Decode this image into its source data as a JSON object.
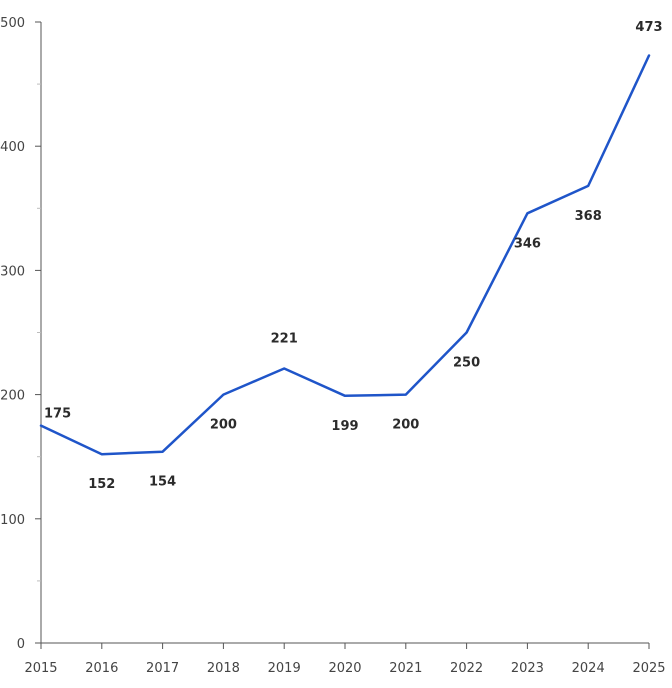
{
  "chart_data": {
    "type": "line",
    "title": "",
    "xlabel": "",
    "ylabel": "",
    "x": [
      "2015",
      "2016",
      "2017",
      "2018",
      "2019",
      "2020",
      "2021",
      "2022",
      "2023",
      "2024",
      "2025"
    ],
    "series": [
      {
        "values": [
          175,
          152,
          154,
          200,
          221,
          199,
          200,
          250,
          346,
          368,
          473
        ],
        "color": "#1f55c9"
      }
    ],
    "data_labels": [
      "175",
      "152",
      "154",
      "200",
      "221",
      "199",
      "200",
      "250",
      "346",
      "368",
      "473"
    ],
    "label_positions": [
      "above",
      "below",
      "below",
      "below",
      "above",
      "below",
      "below",
      "below",
      "below",
      "below",
      "above"
    ],
    "ylim": [
      0,
      500
    ],
    "yticks": [
      0,
      100,
      200,
      300,
      400,
      500
    ],
    "ytick_labels": [
      "0",
      "100",
      "200",
      "300",
      "400",
      "500"
    ],
    "grid": false,
    "legend": "none"
  }
}
